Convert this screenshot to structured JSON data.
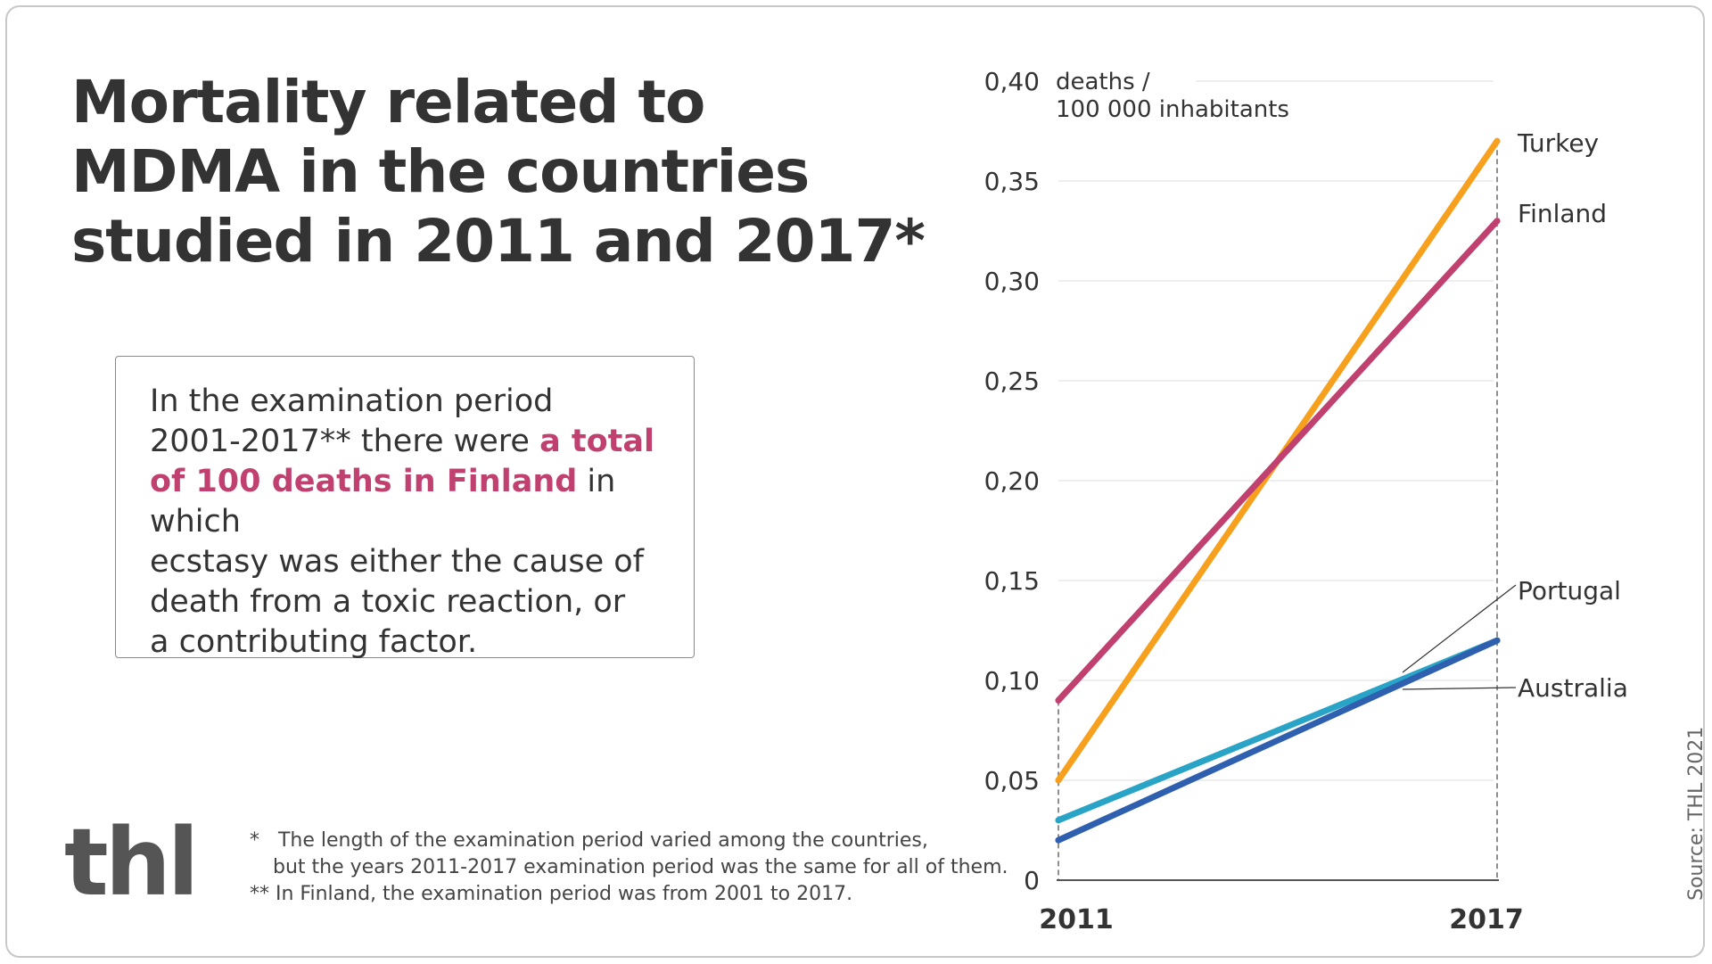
{
  "title_lines": [
    "Mortality related to",
    "MDMA in the countries",
    "studied in 2011 and 2017*"
  ],
  "info_box": {
    "line1": "In the examination period",
    "line2a": "2001-2017** there were ",
    "line2b": "a total",
    "line3a": "of 100 deaths in Finland",
    "line3b": " in which",
    "line4": "ecstasy was either the cause of",
    "line5": "death from a toxic reaction, or",
    "line6": "a contributing factor."
  },
  "logo": "thl",
  "footnotes": {
    "n1a": "*   The length of the examination period varied among the countries,",
    "n1b": "but the years 2011-2017 examination period was the same for all of them.",
    "n2": "** In Finland, the examination period was from 2001 to 2017."
  },
  "source": "Source: THL 2021",
  "chart_data": {
    "type": "line",
    "title": "",
    "ylabel_line1": "deaths /",
    "ylabel_line2": "100 000 inhabitants",
    "x": [
      "2011",
      "2017"
    ],
    "ylim": [
      0,
      0.4
    ],
    "yticks": [
      0,
      0.05,
      0.1,
      0.15,
      0.2,
      0.25,
      0.3,
      0.35,
      0.4
    ],
    "ytick_labels": [
      "0",
      "0,05",
      "0,10",
      "0,15",
      "0,20",
      "0,25",
      "0,30",
      "0,35",
      "0,40"
    ],
    "grid": true,
    "legend": "direct labels at right",
    "series": [
      {
        "name": "Turkey",
        "values": [
          0.05,
          0.37
        ],
        "color": "#f7a01d"
      },
      {
        "name": "Finland",
        "values": [
          0.09,
          0.33
        ],
        "color": "#c0406f"
      },
      {
        "name": "Portugal",
        "values": [
          0.03,
          0.12
        ],
        "color": "#29a3c6"
      },
      {
        "name": "Australia",
        "values": [
          0.02,
          0.12
        ],
        "color": "#2f5faf"
      }
    ]
  }
}
